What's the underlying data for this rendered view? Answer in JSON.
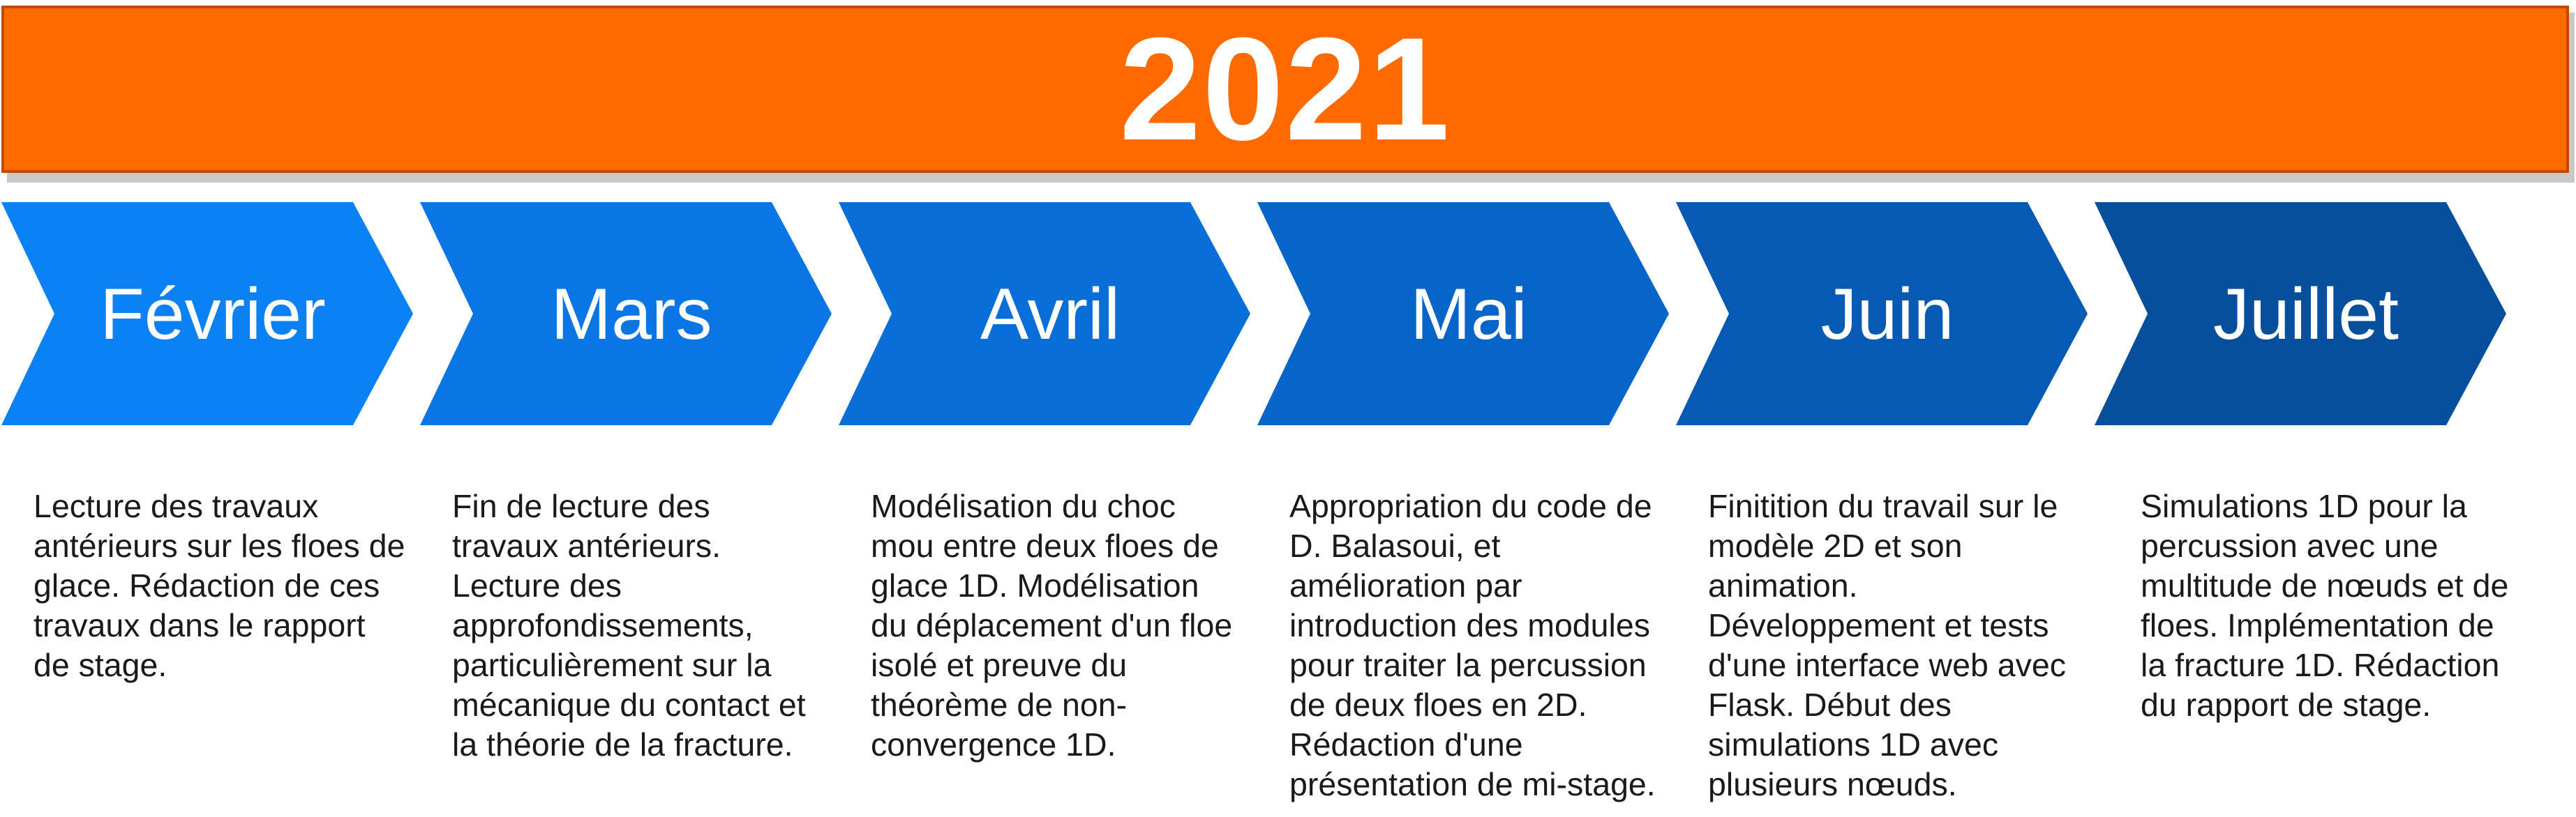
{
  "banner": {
    "year": "2021",
    "color": "#ff6a00"
  },
  "months": [
    {
      "label": "Février",
      "color": "#0a82f5",
      "description": "Lecture des travaux\nantérieurs sur les floes de\nglace. Rédaction de ces\ntravaux dans le rapport\nde stage."
    },
    {
      "label": "Mars",
      "color": "#0a76e6",
      "description": "Fin de lecture des\ntravaux antérieurs.\nLecture des\napprofondissements,\nparticulièrement sur la\nmécanique du contact et\nla théorie de la fracture."
    },
    {
      "label": "Avril",
      "color": "#0a6ed8",
      "description": "Modélisation du choc\nmou entre deux floes de\nglace 1D. Modélisation\ndu déplacement d'un floe\nisolé et preuve du\nthéorème de non-\nconvergence 1D."
    },
    {
      "label": "Mai",
      "color": "#0764c8",
      "description": "Appropriation du code de\nD. Balasoui, et\namélioration par\nintroduction des modules\npour traiter la percussion\nde deux floes en 2D.\nRédaction d'une\nprésentation de mi-stage."
    },
    {
      "label": "Juin",
      "color": "#075ab4",
      "description": "Finitition du travail sur le\nmodèle 2D et son\nanimation.\nDéveloppement et tests\nd'une interface web avec\nFlask. Début des\nsimulations 1D avec\nplusieurs nœuds."
    },
    {
      "label": "Juillet",
      "color": "#054f9c",
      "description": "Simulations 1D pour la\npercussion avec une\nmultitude de nœuds et de\nfloes. Implémentation de\nla fracture 1D. Rédaction\ndu rapport de stage."
    }
  ]
}
